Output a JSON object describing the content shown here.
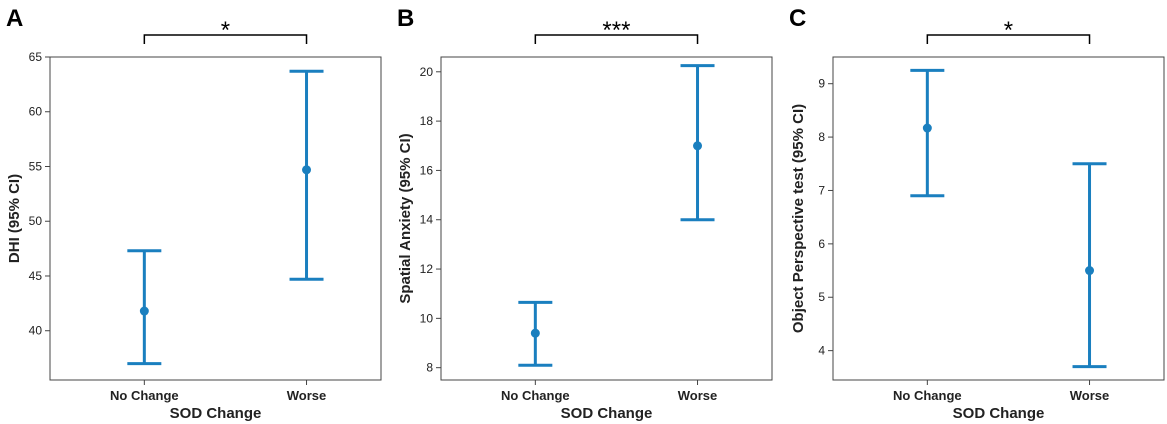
{
  "style": {
    "series_color": "#1a7fbf",
    "axis_color": "#444444",
    "text_color": "#222222"
  },
  "chart_data": [
    {
      "type": "scatter",
      "panel_label": "A",
      "categories": [
        "No Change",
        "Worse"
      ],
      "xlabel": "SOD Change",
      "ylabel": "DHI (95% CI)",
      "ylim": [
        35.5,
        65
      ],
      "yticks": [
        40,
        45,
        50,
        55,
        60,
        65
      ],
      "points": [
        {
          "category": "No Change",
          "mean": 41.8,
          "ci_low": 37.0,
          "ci_high": 47.3
        },
        {
          "category": "Worse",
          "mean": 54.7,
          "ci_low": 44.7,
          "ci_high": 63.7
        }
      ],
      "significance": "*"
    },
    {
      "type": "scatter",
      "panel_label": "B",
      "categories": [
        "No Change",
        "Worse"
      ],
      "xlabel": "SOD Change",
      "ylabel": "Spatial Anxiety (95% CI)",
      "ylim": [
        7.5,
        20.6
      ],
      "yticks": [
        8,
        10,
        12,
        14,
        16,
        18,
        20
      ],
      "points": [
        {
          "category": "No Change",
          "mean": 9.4,
          "ci_low": 8.1,
          "ci_high": 10.65
        },
        {
          "category": "Worse",
          "mean": 17.0,
          "ci_low": 14.0,
          "ci_high": 20.25
        }
      ],
      "significance": "***"
    },
    {
      "type": "scatter",
      "panel_label": "C",
      "categories": [
        "No Change",
        "Worse"
      ],
      "xlabel": "SOD Change",
      "ylabel": "Object Perspective test (95% CI)",
      "ylim": [
        3.45,
        9.5
      ],
      "yticks": [
        4,
        5,
        6,
        7,
        8,
        9
      ],
      "points": [
        {
          "category": "No Change",
          "mean": 8.17,
          "ci_low": 6.9,
          "ci_high": 9.25
        },
        {
          "category": "Worse",
          "mean": 5.5,
          "ci_low": 3.7,
          "ci_high": 7.5
        }
      ],
      "significance": "*"
    }
  ]
}
